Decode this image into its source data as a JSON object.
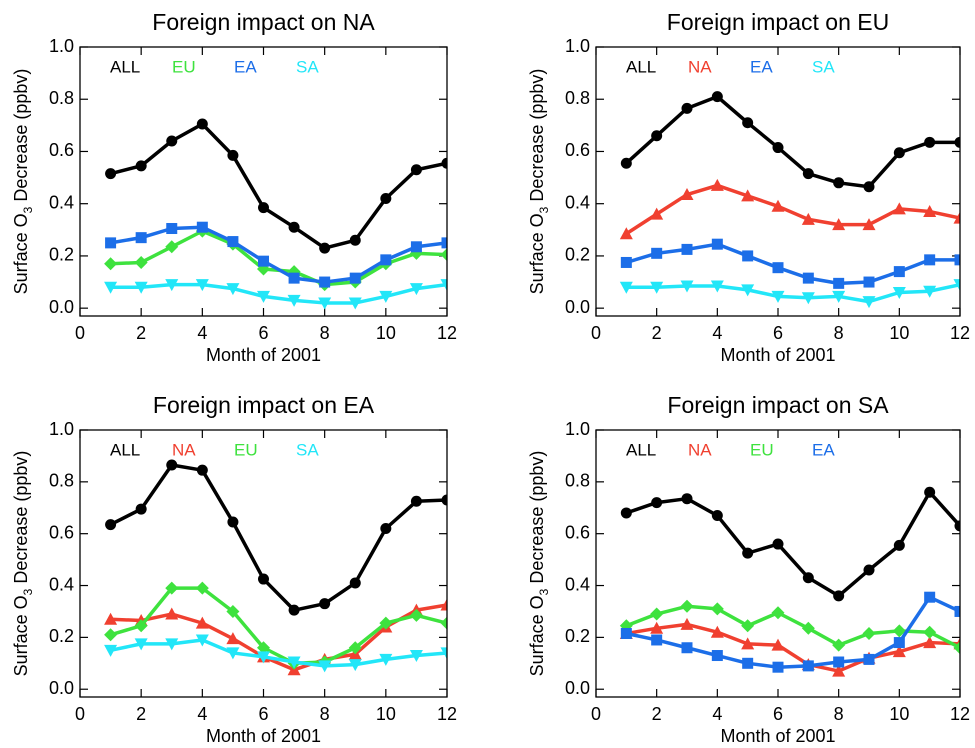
{
  "chart_data": [
    {
      "type": "line",
      "title": "Foreign impact on NA",
      "xlabel": "Month of 2001",
      "ylabel": [
        "Surface O",
        "3",
        " Decrease (ppbv)"
      ],
      "x": [
        1,
        2,
        3,
        4,
        5,
        6,
        7,
        8,
        9,
        10,
        11,
        12
      ],
      "xlim": [
        0,
        12
      ],
      "xticks": [
        0,
        2,
        4,
        6,
        8,
        10,
        12
      ],
      "ylim": [
        -0.03,
        1.0
      ],
      "yticks": [
        {
          "value": 0,
          "label": "0.0"
        },
        0.2,
        0.4,
        0.6,
        0.8,
        {
          "value": 1,
          "label": "1.0"
        }
      ],
      "series": [
        {
          "name": "ALL",
          "color": "#000000",
          "marker": "circle",
          "values": [
            0.515,
            0.545,
            0.64,
            0.705,
            0.585,
            0.385,
            0.31,
            0.23,
            0.26,
            0.42,
            0.53,
            0.555
          ]
        },
        {
          "name": "EU",
          "color": "#3ee23e",
          "marker": "diamond",
          "values": [
            0.17,
            0.175,
            0.235,
            0.295,
            0.245,
            0.15,
            0.14,
            0.09,
            0.1,
            0.17,
            0.21,
            0.205
          ]
        },
        {
          "name": "EA",
          "color": "#1c6ee8",
          "marker": "square",
          "values": [
            0.25,
            0.27,
            0.305,
            0.31,
            0.255,
            0.18,
            0.115,
            0.1,
            0.115,
            0.185,
            0.235,
            0.25
          ]
        },
        {
          "name": "SA",
          "color": "#22e6f8",
          "marker": "triangle-down",
          "values": [
            0.08,
            0.08,
            0.09,
            0.09,
            0.075,
            0.045,
            0.03,
            0.02,
            0.02,
            0.045,
            0.075,
            0.09
          ]
        }
      ]
    },
    {
      "type": "line",
      "title": "Foreign impact on EU",
      "xlabel": "Month of 2001",
      "ylabel": [
        "Surface O",
        "3",
        " Decrease (ppbv)"
      ],
      "x": [
        1,
        2,
        3,
        4,
        5,
        6,
        7,
        8,
        9,
        10,
        11,
        12
      ],
      "xlim": [
        0,
        12
      ],
      "xticks": [
        0,
        2,
        4,
        6,
        8,
        10,
        12
      ],
      "ylim": [
        -0.03,
        1.0
      ],
      "yticks": [
        {
          "value": 0,
          "label": "0.0"
        },
        0.2,
        0.4,
        0.6,
        0.8,
        {
          "value": 1,
          "label": "1.0"
        }
      ],
      "series": [
        {
          "name": "ALL",
          "color": "#000000",
          "marker": "circle",
          "values": [
            0.555,
            0.66,
            0.765,
            0.81,
            0.71,
            0.615,
            0.515,
            0.48,
            0.465,
            0.595,
            0.635,
            0.635
          ]
        },
        {
          "name": "NA",
          "color": "#f04030",
          "marker": "triangle-up",
          "values": [
            0.285,
            0.36,
            0.435,
            0.47,
            0.43,
            0.39,
            0.34,
            0.32,
            0.32,
            0.38,
            0.37,
            0.345
          ]
        },
        {
          "name": "EA",
          "color": "#1c6ee8",
          "marker": "square",
          "values": [
            0.175,
            0.21,
            0.225,
            0.245,
            0.2,
            0.155,
            0.115,
            0.095,
            0.1,
            0.14,
            0.185,
            0.185
          ]
        },
        {
          "name": "SA",
          "color": "#22e6f8",
          "marker": "triangle-down",
          "values": [
            0.08,
            0.08,
            0.085,
            0.085,
            0.07,
            0.045,
            0.04,
            0.045,
            0.025,
            0.06,
            0.065,
            0.09
          ]
        }
      ]
    },
    {
      "type": "line",
      "title": "Foreign impact on EA",
      "xlabel": "Month of 2001",
      "ylabel": [
        "Surface O",
        "3",
        " Decrease (ppbv)"
      ],
      "x": [
        1,
        2,
        3,
        4,
        5,
        6,
        7,
        8,
        9,
        10,
        11,
        12
      ],
      "xlim": [
        0,
        12
      ],
      "xticks": [
        0,
        2,
        4,
        6,
        8,
        10,
        12
      ],
      "ylim": [
        -0.03,
        1.0
      ],
      "yticks": [
        {
          "value": 0,
          "label": "0.0"
        },
        0.2,
        0.4,
        0.6,
        0.8,
        {
          "value": 1,
          "label": "1.0"
        }
      ],
      "series": [
        {
          "name": "ALL",
          "color": "#000000",
          "marker": "circle",
          "values": [
            0.635,
            0.695,
            0.865,
            0.845,
            0.645,
            0.425,
            0.305,
            0.33,
            0.41,
            0.62,
            0.725,
            0.73
          ]
        },
        {
          "name": "NA",
          "color": "#f04030",
          "marker": "triangle-up",
          "values": [
            0.27,
            0.265,
            0.29,
            0.255,
            0.195,
            0.125,
            0.075,
            0.115,
            0.135,
            0.24,
            0.305,
            0.325
          ]
        },
        {
          "name": "EU",
          "color": "#3ee23e",
          "marker": "diamond",
          "values": [
            0.21,
            0.245,
            0.39,
            0.39,
            0.3,
            0.16,
            0.1,
            0.105,
            0.16,
            0.255,
            0.285,
            0.255
          ]
        },
        {
          "name": "SA",
          "color": "#22e6f8",
          "marker": "triangle-down",
          "values": [
            0.15,
            0.175,
            0.175,
            0.19,
            0.14,
            0.125,
            0.105,
            0.09,
            0.095,
            0.115,
            0.13,
            0.14
          ]
        }
      ]
    },
    {
      "type": "line",
      "title": "Foreign impact on SA",
      "xlabel": "Month of 2001",
      "ylabel": [
        "Surface O",
        "3",
        " Decrease (ppbv)"
      ],
      "x": [
        1,
        2,
        3,
        4,
        5,
        6,
        7,
        8,
        9,
        10,
        11,
        12
      ],
      "xlim": [
        0,
        12
      ],
      "xticks": [
        0,
        2,
        4,
        6,
        8,
        10,
        12
      ],
      "ylim": [
        -0.03,
        1.0
      ],
      "yticks": [
        {
          "value": 0,
          "label": "0.0"
        },
        0.2,
        0.4,
        0.6,
        0.8,
        {
          "value": 1,
          "label": "1.0"
        }
      ],
      "series": [
        {
          "name": "ALL",
          "color": "#000000",
          "marker": "circle",
          "values": [
            0.68,
            0.72,
            0.735,
            0.67,
            0.525,
            0.56,
            0.43,
            0.36,
            0.46,
            0.555,
            0.76,
            0.63
          ]
        },
        {
          "name": "NA",
          "color": "#f04030",
          "marker": "triangle-up",
          "values": [
            0.215,
            0.235,
            0.25,
            0.22,
            0.175,
            0.17,
            0.095,
            0.07,
            0.12,
            0.145,
            0.18,
            0.175
          ]
        },
        {
          "name": "EU",
          "color": "#3ee23e",
          "marker": "diamond",
          "values": [
            0.245,
            0.29,
            0.32,
            0.31,
            0.245,
            0.295,
            0.235,
            0.17,
            0.215,
            0.225,
            0.22,
            0.16
          ]
        },
        {
          "name": "EA",
          "color": "#1c6ee8",
          "marker": "square",
          "values": [
            0.215,
            0.19,
            0.16,
            0.13,
            0.1,
            0.085,
            0.09,
            0.105,
            0.115,
            0.18,
            0.355,
            0.3
          ]
        }
      ]
    }
  ]
}
